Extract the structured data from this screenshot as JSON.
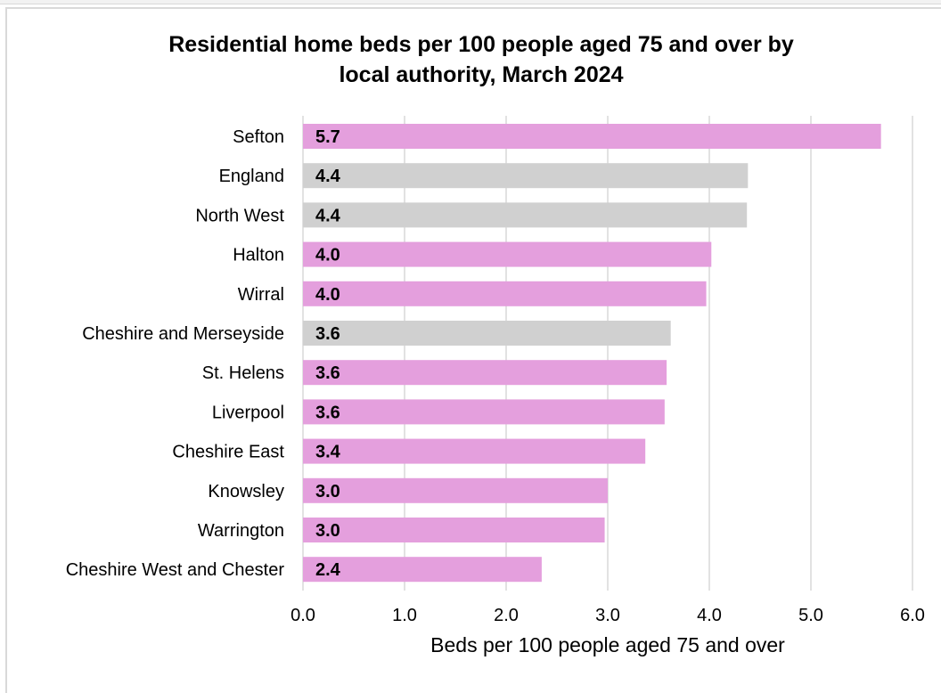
{
  "chart_data": {
    "type": "bar",
    "orientation": "horizontal",
    "title": "Residential home beds per 100 people aged 75 and over by local authority, March 2024",
    "xlabel": "Beds per 100 people aged 75 and over",
    "ylabel": "",
    "xlim": [
      0,
      6
    ],
    "xticks": [
      "0.0",
      "1.0",
      "2.0",
      "3.0",
      "4.0",
      "5.0",
      "6.0"
    ],
    "grid": true,
    "categories": [
      "Sefton",
      "England",
      "North West",
      "Halton",
      "Wirral",
      "Cheshire and Merseyside",
      "St. Helens",
      "Liverpool",
      "Cheshire East",
      "Knowsley",
      "Warrington",
      "Cheshire West and Chester"
    ],
    "values": [
      5.69,
      4.38,
      4.37,
      4.02,
      3.97,
      3.62,
      3.58,
      3.56,
      3.37,
      3.0,
      2.97,
      2.35
    ],
    "data_labels": [
      "5.7",
      "4.4",
      "4.4",
      "4.0",
      "4.0",
      "3.6",
      "3.6",
      "3.6",
      "3.4",
      "3.0",
      "3.0",
      "2.4"
    ],
    "bar_colors": [
      "#e49fdd",
      "#d0d0d0",
      "#d0d0d0",
      "#e49fdd",
      "#e49fdd",
      "#d0d0d0",
      "#e49fdd",
      "#e49fdd",
      "#e49fdd",
      "#e49fdd",
      "#e49fdd",
      "#e49fdd"
    ],
    "grid_color": "#d9d9d9"
  }
}
